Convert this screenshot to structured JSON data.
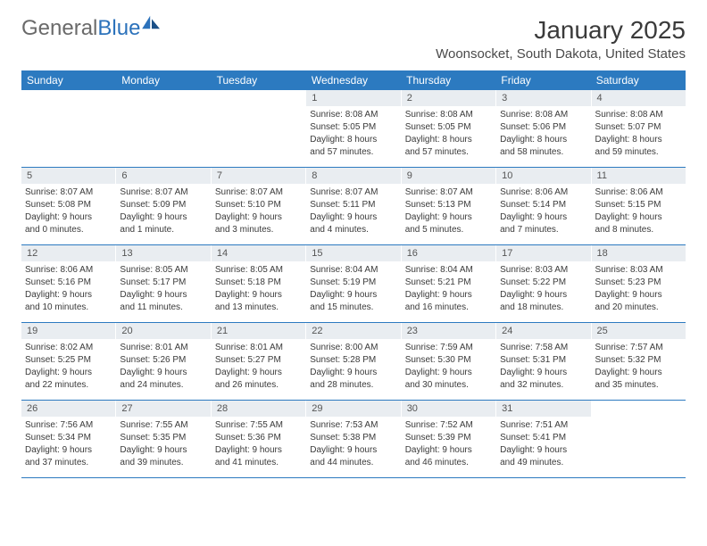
{
  "brand": {
    "part1": "General",
    "part2": "Blue"
  },
  "title": "January 2025",
  "location": "Woonsocket, South Dakota, United States",
  "dow": [
    "Sunday",
    "Monday",
    "Tuesday",
    "Wednesday",
    "Thursday",
    "Friday",
    "Saturday"
  ],
  "colors": {
    "header_bg": "#2c7ac0",
    "date_bar_bg": "#e9edf1",
    "rule": "#2c7ac0",
    "text": "#3a3a3a",
    "brand_blue": "#2c72bb"
  },
  "weeks": [
    [
      {
        "empty": true
      },
      {
        "empty": true
      },
      {
        "empty": true
      },
      {
        "date": "1",
        "sunrise": "Sunrise: 8:08 AM",
        "sunset": "Sunset: 5:05 PM",
        "daylight1": "Daylight: 8 hours",
        "daylight2": "and 57 minutes."
      },
      {
        "date": "2",
        "sunrise": "Sunrise: 8:08 AM",
        "sunset": "Sunset: 5:05 PM",
        "daylight1": "Daylight: 8 hours",
        "daylight2": "and 57 minutes."
      },
      {
        "date": "3",
        "sunrise": "Sunrise: 8:08 AM",
        "sunset": "Sunset: 5:06 PM",
        "daylight1": "Daylight: 8 hours",
        "daylight2": "and 58 minutes."
      },
      {
        "date": "4",
        "sunrise": "Sunrise: 8:08 AM",
        "sunset": "Sunset: 5:07 PM",
        "daylight1": "Daylight: 8 hours",
        "daylight2": "and 59 minutes."
      }
    ],
    [
      {
        "date": "5",
        "sunrise": "Sunrise: 8:07 AM",
        "sunset": "Sunset: 5:08 PM",
        "daylight1": "Daylight: 9 hours",
        "daylight2": "and 0 minutes."
      },
      {
        "date": "6",
        "sunrise": "Sunrise: 8:07 AM",
        "sunset": "Sunset: 5:09 PM",
        "daylight1": "Daylight: 9 hours",
        "daylight2": "and 1 minute."
      },
      {
        "date": "7",
        "sunrise": "Sunrise: 8:07 AM",
        "sunset": "Sunset: 5:10 PM",
        "daylight1": "Daylight: 9 hours",
        "daylight2": "and 3 minutes."
      },
      {
        "date": "8",
        "sunrise": "Sunrise: 8:07 AM",
        "sunset": "Sunset: 5:11 PM",
        "daylight1": "Daylight: 9 hours",
        "daylight2": "and 4 minutes."
      },
      {
        "date": "9",
        "sunrise": "Sunrise: 8:07 AM",
        "sunset": "Sunset: 5:13 PM",
        "daylight1": "Daylight: 9 hours",
        "daylight2": "and 5 minutes."
      },
      {
        "date": "10",
        "sunrise": "Sunrise: 8:06 AM",
        "sunset": "Sunset: 5:14 PM",
        "daylight1": "Daylight: 9 hours",
        "daylight2": "and 7 minutes."
      },
      {
        "date": "11",
        "sunrise": "Sunrise: 8:06 AM",
        "sunset": "Sunset: 5:15 PM",
        "daylight1": "Daylight: 9 hours",
        "daylight2": "and 8 minutes."
      }
    ],
    [
      {
        "date": "12",
        "sunrise": "Sunrise: 8:06 AM",
        "sunset": "Sunset: 5:16 PM",
        "daylight1": "Daylight: 9 hours",
        "daylight2": "and 10 minutes."
      },
      {
        "date": "13",
        "sunrise": "Sunrise: 8:05 AM",
        "sunset": "Sunset: 5:17 PM",
        "daylight1": "Daylight: 9 hours",
        "daylight2": "and 11 minutes."
      },
      {
        "date": "14",
        "sunrise": "Sunrise: 8:05 AM",
        "sunset": "Sunset: 5:18 PM",
        "daylight1": "Daylight: 9 hours",
        "daylight2": "and 13 minutes."
      },
      {
        "date": "15",
        "sunrise": "Sunrise: 8:04 AM",
        "sunset": "Sunset: 5:19 PM",
        "daylight1": "Daylight: 9 hours",
        "daylight2": "and 15 minutes."
      },
      {
        "date": "16",
        "sunrise": "Sunrise: 8:04 AM",
        "sunset": "Sunset: 5:21 PM",
        "daylight1": "Daylight: 9 hours",
        "daylight2": "and 16 minutes."
      },
      {
        "date": "17",
        "sunrise": "Sunrise: 8:03 AM",
        "sunset": "Sunset: 5:22 PM",
        "daylight1": "Daylight: 9 hours",
        "daylight2": "and 18 minutes."
      },
      {
        "date": "18",
        "sunrise": "Sunrise: 8:03 AM",
        "sunset": "Sunset: 5:23 PM",
        "daylight1": "Daylight: 9 hours",
        "daylight2": "and 20 minutes."
      }
    ],
    [
      {
        "date": "19",
        "sunrise": "Sunrise: 8:02 AM",
        "sunset": "Sunset: 5:25 PM",
        "daylight1": "Daylight: 9 hours",
        "daylight2": "and 22 minutes."
      },
      {
        "date": "20",
        "sunrise": "Sunrise: 8:01 AM",
        "sunset": "Sunset: 5:26 PM",
        "daylight1": "Daylight: 9 hours",
        "daylight2": "and 24 minutes."
      },
      {
        "date": "21",
        "sunrise": "Sunrise: 8:01 AM",
        "sunset": "Sunset: 5:27 PM",
        "daylight1": "Daylight: 9 hours",
        "daylight2": "and 26 minutes."
      },
      {
        "date": "22",
        "sunrise": "Sunrise: 8:00 AM",
        "sunset": "Sunset: 5:28 PM",
        "daylight1": "Daylight: 9 hours",
        "daylight2": "and 28 minutes."
      },
      {
        "date": "23",
        "sunrise": "Sunrise: 7:59 AM",
        "sunset": "Sunset: 5:30 PM",
        "daylight1": "Daylight: 9 hours",
        "daylight2": "and 30 minutes."
      },
      {
        "date": "24",
        "sunrise": "Sunrise: 7:58 AM",
        "sunset": "Sunset: 5:31 PM",
        "daylight1": "Daylight: 9 hours",
        "daylight2": "and 32 minutes."
      },
      {
        "date": "25",
        "sunrise": "Sunrise: 7:57 AM",
        "sunset": "Sunset: 5:32 PM",
        "daylight1": "Daylight: 9 hours",
        "daylight2": "and 35 minutes."
      }
    ],
    [
      {
        "date": "26",
        "sunrise": "Sunrise: 7:56 AM",
        "sunset": "Sunset: 5:34 PM",
        "daylight1": "Daylight: 9 hours",
        "daylight2": "and 37 minutes."
      },
      {
        "date": "27",
        "sunrise": "Sunrise: 7:55 AM",
        "sunset": "Sunset: 5:35 PM",
        "daylight1": "Daylight: 9 hours",
        "daylight2": "and 39 minutes."
      },
      {
        "date": "28",
        "sunrise": "Sunrise: 7:55 AM",
        "sunset": "Sunset: 5:36 PM",
        "daylight1": "Daylight: 9 hours",
        "daylight2": "and 41 minutes."
      },
      {
        "date": "29",
        "sunrise": "Sunrise: 7:53 AM",
        "sunset": "Sunset: 5:38 PM",
        "daylight1": "Daylight: 9 hours",
        "daylight2": "and 44 minutes."
      },
      {
        "date": "30",
        "sunrise": "Sunrise: 7:52 AM",
        "sunset": "Sunset: 5:39 PM",
        "daylight1": "Daylight: 9 hours",
        "daylight2": "and 46 minutes."
      },
      {
        "date": "31",
        "sunrise": "Sunrise: 7:51 AM",
        "sunset": "Sunset: 5:41 PM",
        "daylight1": "Daylight: 9 hours",
        "daylight2": "and 49 minutes."
      },
      {
        "empty": true
      }
    ]
  ]
}
